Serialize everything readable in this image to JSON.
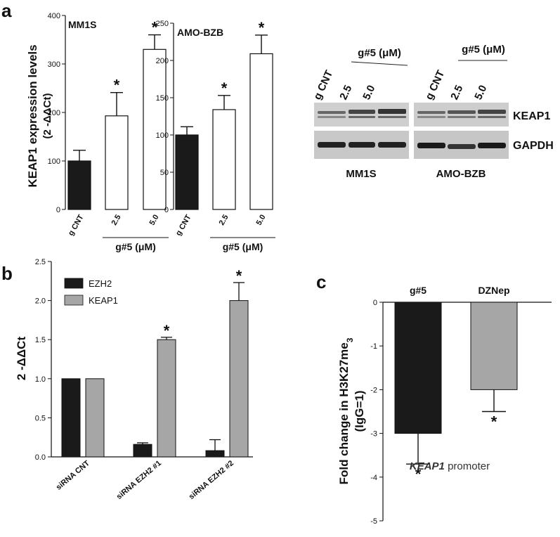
{
  "panel_a": {
    "letter": "a",
    "ylabel": "KEAP1 expression levels",
    "ylabel_unit": "(2 -ΔΔCt)",
    "blot": {
      "header_left": "g CNT",
      "header_group": "g#5 (μM)",
      "lanes": [
        "2.5",
        "5.0"
      ],
      "bands": [
        "KEAP1",
        "GAPDH"
      ],
      "cells": [
        "MM1S",
        "AMO-BZB"
      ]
    }
  },
  "panel_b": {
    "letter": "b"
  },
  "panel_c": {
    "letter": "c",
    "note_italic": "KEAP1",
    "note_rest": " promoter"
  },
  "colors": {
    "black_bar": "#1a1a1a",
    "gray_bar": "#a6a6a6",
    "white_bar": "#ffffff"
  },
  "chart_data": [
    {
      "id": "a1",
      "type": "bar",
      "title": "MM1S",
      "categories": [
        "g CNT",
        "2.5",
        "5.0"
      ],
      "group_label": "g#5 (μM)",
      "values": [
        100,
        193,
        330
      ],
      "errors": [
        22,
        48,
        30
      ],
      "significant": [
        false,
        true,
        true
      ],
      "ylim": [
        0,
        400
      ],
      "yticks": [
        0,
        100,
        200,
        300,
        400
      ],
      "bar_fills": [
        "black",
        "white",
        "white"
      ]
    },
    {
      "id": "a2",
      "type": "bar",
      "title": "AMO-BZB",
      "categories": [
        "g CNT",
        "2.5",
        "5.0"
      ],
      "group_label": "g#5 (μM)",
      "values": [
        100,
        134,
        209
      ],
      "errors": [
        11,
        19,
        25
      ],
      "significant": [
        false,
        true,
        true
      ],
      "ylim": [
        0,
        250
      ],
      "yticks": [
        0,
        50,
        100,
        150,
        200,
        250
      ],
      "bar_fills": [
        "black",
        "white",
        "white"
      ]
    },
    {
      "id": "b",
      "type": "bar",
      "ylabel": "2 -ΔΔCt",
      "categories": [
        "siRNA CNT",
        "siRNA EZH2 #1",
        "siRNA EZH2 #2"
      ],
      "series": [
        {
          "name": "EZH2",
          "values": [
            1.0,
            0.16,
            0.08
          ],
          "errors": [
            0,
            0.02,
            0.14
          ],
          "significant": [
            false,
            false,
            false
          ]
        },
        {
          "name": "KEAP1",
          "values": [
            1.0,
            1.5,
            2.0
          ],
          "errors": [
            0,
            0.03,
            0.23
          ],
          "significant": [
            false,
            true,
            true
          ]
        }
      ],
      "ylim": [
        0,
        2.5
      ],
      "yticks": [
        "0.0",
        "0.5",
        "1.0",
        "1.5",
        "2.0",
        "2.5"
      ],
      "legend": "top-left"
    },
    {
      "id": "c",
      "type": "bar",
      "ylabel": "Fold change in H3K27me3 (IgG=1)",
      "ylabel_parts": [
        "Fold change in H3K27me",
        "3",
        "(IgG=1)"
      ],
      "categories": [
        "g#5",
        "DZNep"
      ],
      "values": [
        -3.0,
        -2.0
      ],
      "errors": [
        0.7,
        0.5
      ],
      "significant": [
        true,
        true
      ],
      "ylim": [
        -5,
        0
      ],
      "yticks": [
        0,
        -1,
        -2,
        -3,
        -4,
        -5
      ]
    }
  ]
}
